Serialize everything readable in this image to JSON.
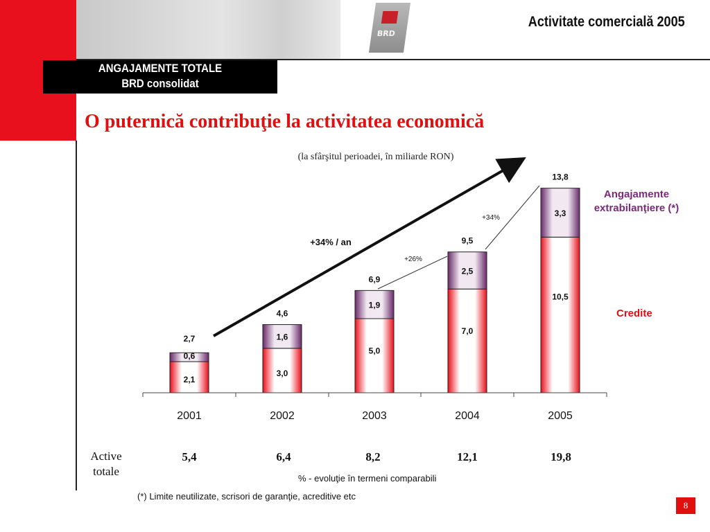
{
  "header": {
    "title": "Activitate comercială 2005",
    "logo_text": "BRD",
    "section_line1": "ANGAJAMENTE TOTALE",
    "section_line2": "BRD consolidat"
  },
  "main_title": "O puternică contribuţie la activitatea economică",
  "subtitle": "(la sfârşitul perioadei, în miliarde RON)",
  "colors": {
    "accent_red": "#e01010",
    "credite": "#e8101c",
    "extrabilant": "#7a3a7a"
  },
  "chart_data": {
    "type": "bar",
    "stacked": true,
    "categories": [
      "2001",
      "2002",
      "2003",
      "2004",
      "2005"
    ],
    "series": [
      {
        "name": "Credite",
        "values": [
          2.1,
          3.0,
          5.0,
          7.0,
          10.5
        ],
        "labels": [
          "2,1",
          "3,0",
          "5,0",
          "7,0",
          "10,5"
        ]
      },
      {
        "name": "Angajamente extrabilanţiere (*)",
        "values": [
          0.6,
          1.6,
          1.9,
          2.5,
          3.3
        ],
        "labels": [
          "0,6",
          "1,6",
          "1,9",
          "2,5",
          "3,3"
        ]
      }
    ],
    "totals": [
      2.7,
      4.6,
      6.9,
      9.5,
      13.8
    ],
    "total_labels": [
      "2,7",
      "4,6",
      "6,9",
      "9,5",
      "13,8"
    ],
    "ylim": [
      0,
      14.5
    ],
    "annotations": {
      "trend": "+34% / an",
      "growth_2004": "+26%",
      "growth_2005": "+34%"
    },
    "legend_placement": "right"
  },
  "legend": {
    "extrabilant_line1": "Angajamente",
    "extrabilant_line2": "extrabilanţiere (*)",
    "credite": "Credite"
  },
  "active_totale": {
    "label_line1": "Active",
    "label_line2": "totale",
    "values": [
      "5,4",
      "6,4",
      "8,2",
      "12,1",
      "19,8"
    ]
  },
  "notes": {
    "percent_note": "% - evoluţie în termeni comparabili",
    "footnote": "(*) Limite neutilizate, scrisori de garanţie, acreditive etc"
  },
  "page_number": "8"
}
